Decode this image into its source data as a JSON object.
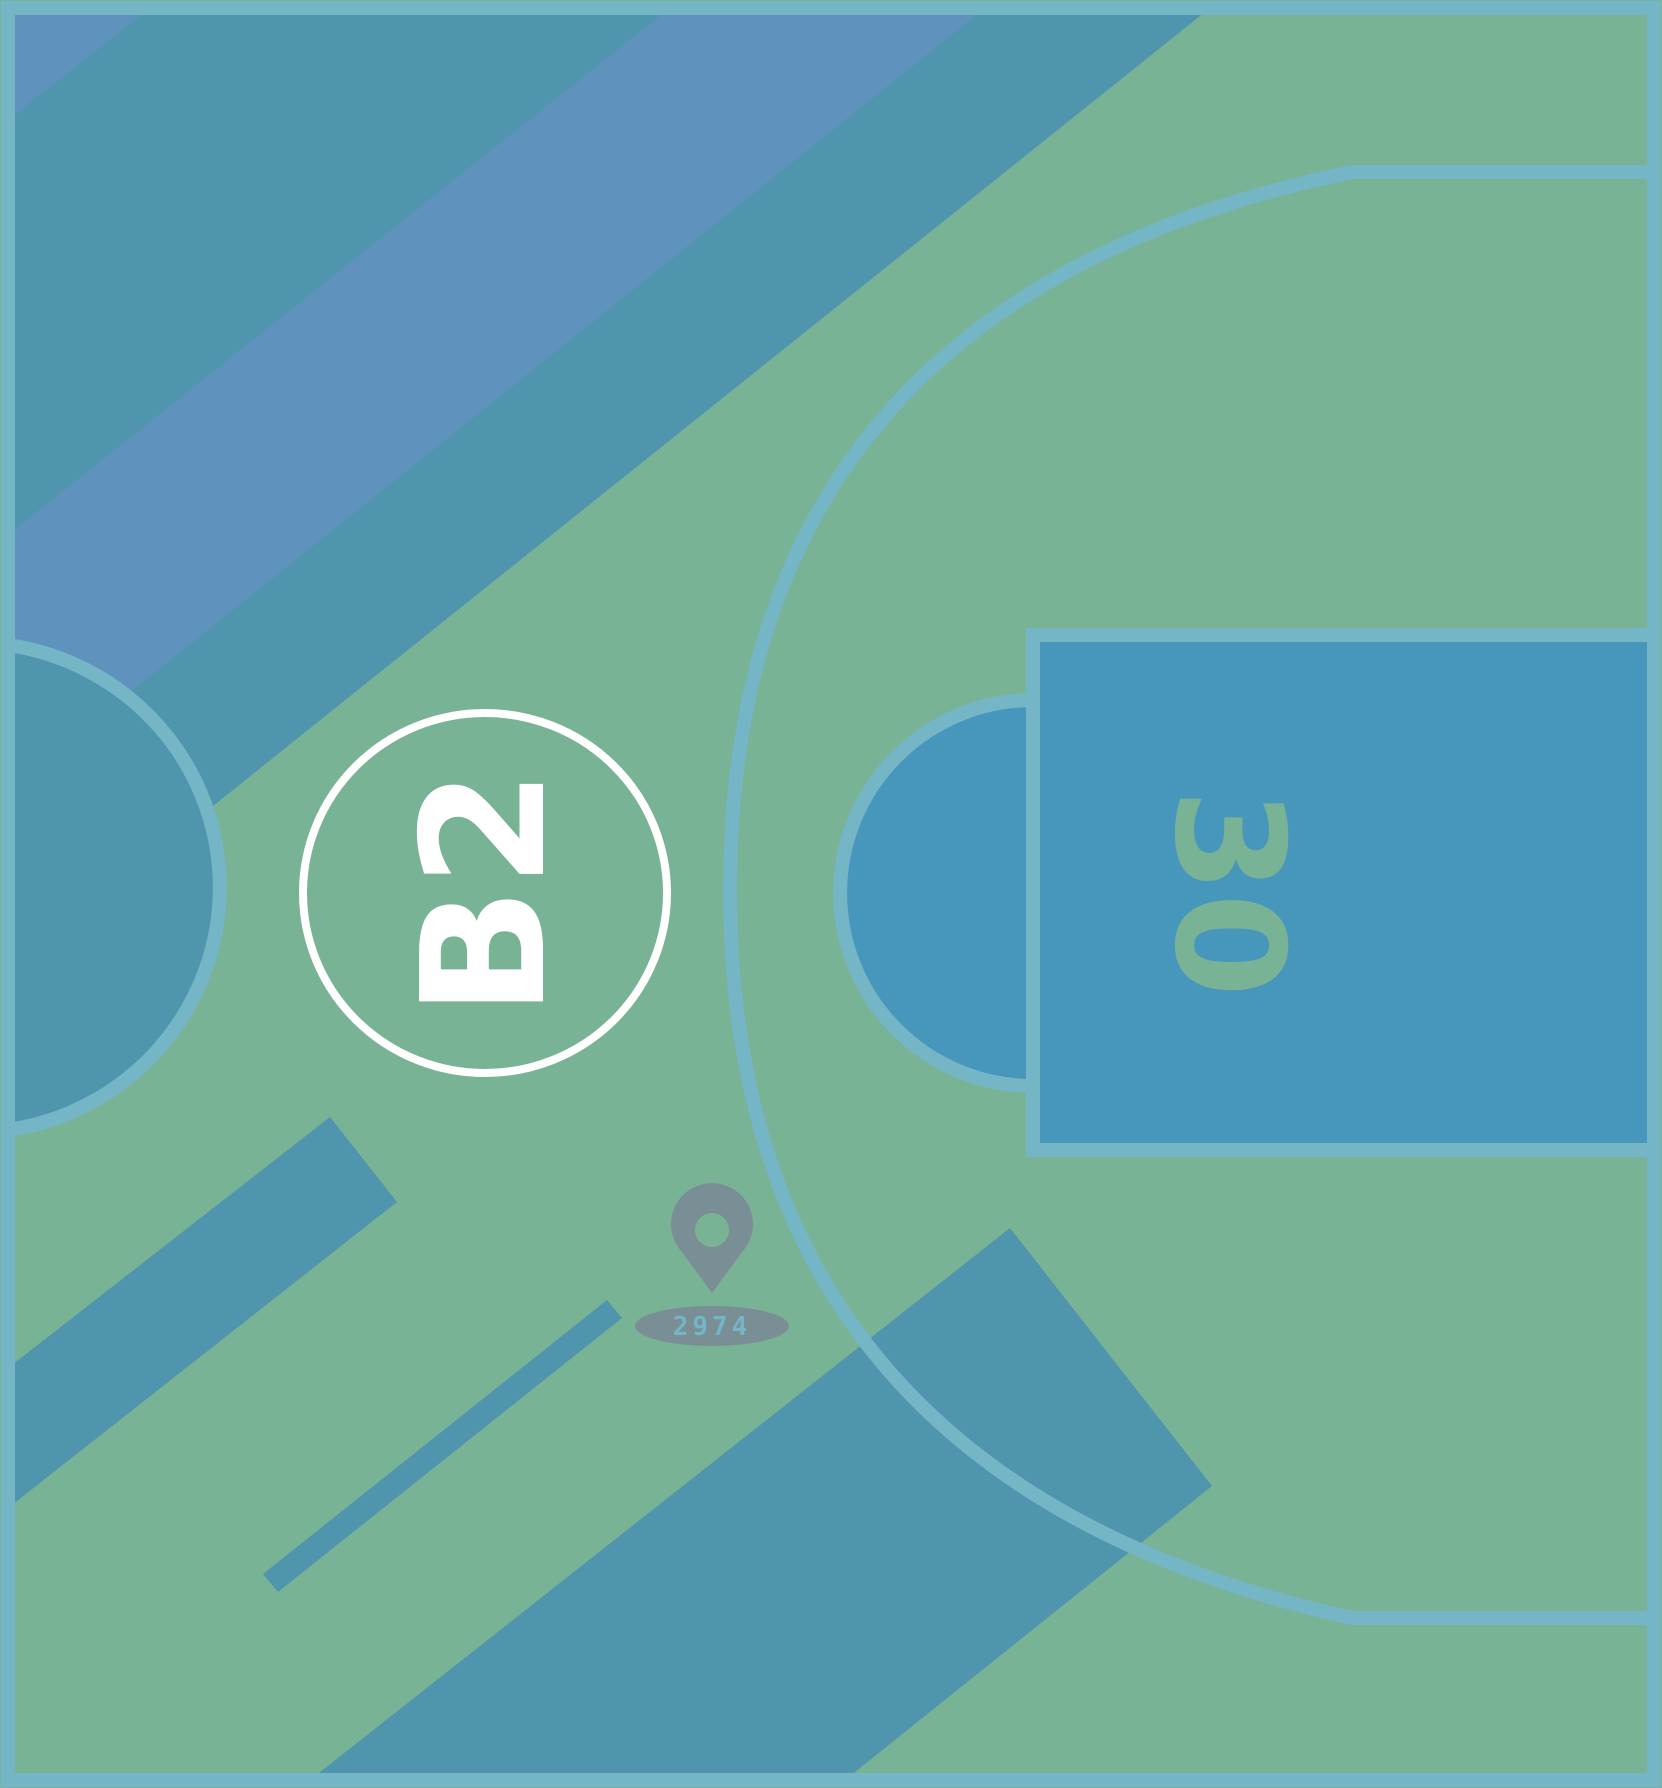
{
  "colors": {
    "ground": "#79b395",
    "stripe_dark": "#4f95ae",
    "stripe_light": "#5f93bd",
    "paint": "#4796bc",
    "court_line": "#74b6c5",
    "circle_label": "#ffffff",
    "pin": "#7a8e95",
    "pin_text": "#74b6c5"
  },
  "court": {
    "key_label": "30",
    "key_label_orientation": "rotated-clockwise"
  },
  "sector_badge": {
    "label": "B2",
    "label_orientation": "rotated-counterclockwise",
    "icon": "circle-outline"
  },
  "location_pin": {
    "icon": "map-pin-icon",
    "label": "2974"
  }
}
